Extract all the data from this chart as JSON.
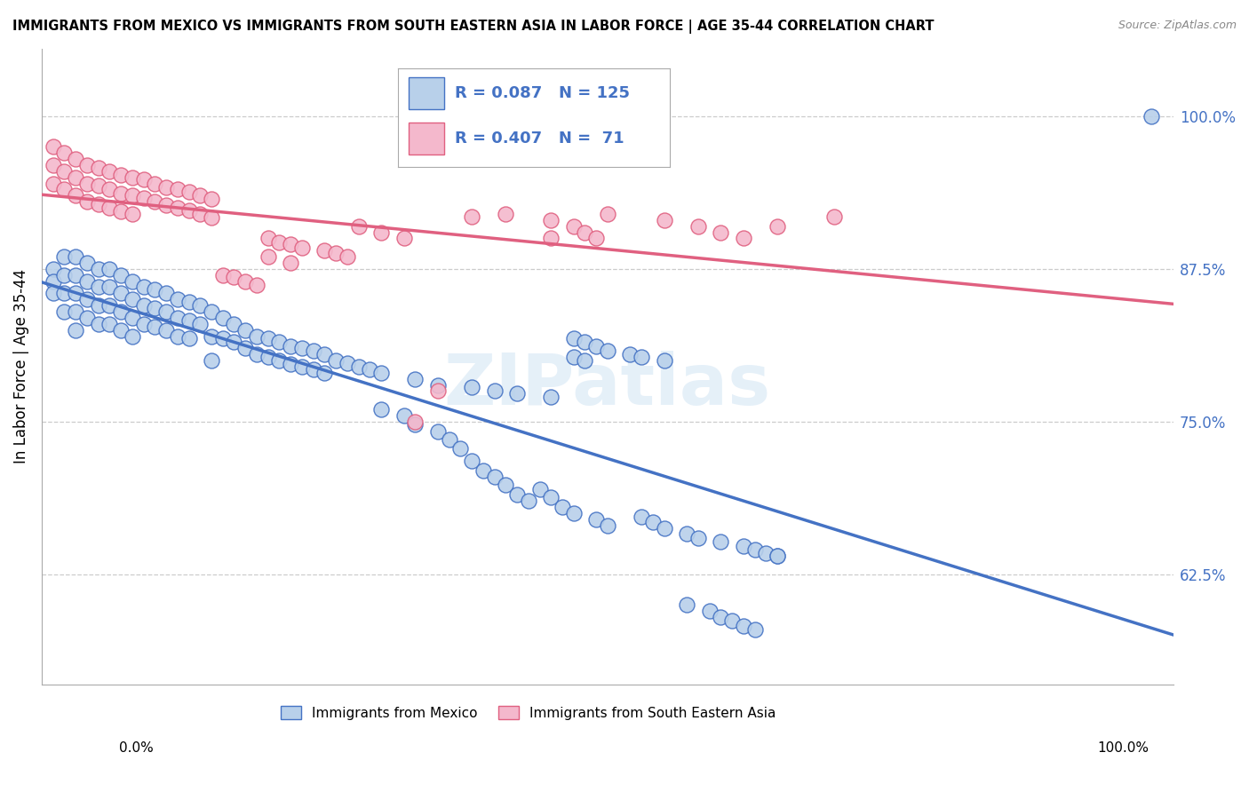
{
  "title": "IMMIGRANTS FROM MEXICO VS IMMIGRANTS FROM SOUTH EASTERN ASIA IN LABOR FORCE | AGE 35-44 CORRELATION CHART",
  "source": "Source: ZipAtlas.com",
  "ylabel": "In Labor Force | Age 35-44",
  "y_ticks": [
    0.625,
    0.75,
    0.875,
    1.0
  ],
  "y_tick_labels": [
    "62.5%",
    "75.0%",
    "87.5%",
    "100.0%"
  ],
  "x_range": [
    0.0,
    1.0
  ],
  "y_range": [
    0.535,
    1.055
  ],
  "legend_blue_R": "0.087",
  "legend_blue_N": "125",
  "legend_pink_R": "0.407",
  "legend_pink_N": "71",
  "blue_face_color": "#b8d0ea",
  "blue_edge_color": "#4472c4",
  "pink_face_color": "#f4b8cc",
  "pink_edge_color": "#e06080",
  "blue_line_color": "#4472c4",
  "pink_line_color": "#e06080",
  "watermark": "ZIPatlas",
  "blue_scatter": [
    [
      0.01,
      0.875
    ],
    [
      0.01,
      0.865
    ],
    [
      0.01,
      0.855
    ],
    [
      0.02,
      0.885
    ],
    [
      0.02,
      0.87
    ],
    [
      0.02,
      0.855
    ],
    [
      0.02,
      0.84
    ],
    [
      0.03,
      0.885
    ],
    [
      0.03,
      0.87
    ],
    [
      0.03,
      0.855
    ],
    [
      0.03,
      0.84
    ],
    [
      0.03,
      0.825
    ],
    [
      0.04,
      0.88
    ],
    [
      0.04,
      0.865
    ],
    [
      0.04,
      0.85
    ],
    [
      0.04,
      0.835
    ],
    [
      0.05,
      0.875
    ],
    [
      0.05,
      0.86
    ],
    [
      0.05,
      0.845
    ],
    [
      0.05,
      0.83
    ],
    [
      0.06,
      0.875
    ],
    [
      0.06,
      0.86
    ],
    [
      0.06,
      0.845
    ],
    [
      0.06,
      0.83
    ],
    [
      0.07,
      0.87
    ],
    [
      0.07,
      0.855
    ],
    [
      0.07,
      0.84
    ],
    [
      0.07,
      0.825
    ],
    [
      0.08,
      0.865
    ],
    [
      0.08,
      0.85
    ],
    [
      0.08,
      0.835
    ],
    [
      0.08,
      0.82
    ],
    [
      0.09,
      0.86
    ],
    [
      0.09,
      0.845
    ],
    [
      0.09,
      0.83
    ],
    [
      0.1,
      0.858
    ],
    [
      0.1,
      0.843
    ],
    [
      0.1,
      0.828
    ],
    [
      0.11,
      0.855
    ],
    [
      0.11,
      0.84
    ],
    [
      0.11,
      0.825
    ],
    [
      0.12,
      0.85
    ],
    [
      0.12,
      0.835
    ],
    [
      0.12,
      0.82
    ],
    [
      0.13,
      0.848
    ],
    [
      0.13,
      0.833
    ],
    [
      0.13,
      0.818
    ],
    [
      0.14,
      0.845
    ],
    [
      0.14,
      0.83
    ],
    [
      0.15,
      0.84
    ],
    [
      0.15,
      0.82
    ],
    [
      0.15,
      0.8
    ],
    [
      0.16,
      0.835
    ],
    [
      0.16,
      0.818
    ],
    [
      0.17,
      0.83
    ],
    [
      0.17,
      0.815
    ],
    [
      0.18,
      0.825
    ],
    [
      0.18,
      0.81
    ],
    [
      0.19,
      0.82
    ],
    [
      0.19,
      0.805
    ],
    [
      0.2,
      0.818
    ],
    [
      0.2,
      0.803
    ],
    [
      0.21,
      0.815
    ],
    [
      0.21,
      0.8
    ],
    [
      0.22,
      0.812
    ],
    [
      0.22,
      0.797
    ],
    [
      0.23,
      0.81
    ],
    [
      0.23,
      0.795
    ],
    [
      0.24,
      0.808
    ],
    [
      0.24,
      0.793
    ],
    [
      0.25,
      0.805
    ],
    [
      0.25,
      0.79
    ],
    [
      0.26,
      0.8
    ],
    [
      0.27,
      0.798
    ],
    [
      0.28,
      0.795
    ],
    [
      0.29,
      0.793
    ],
    [
      0.3,
      0.79
    ],
    [
      0.33,
      0.785
    ],
    [
      0.35,
      0.78
    ],
    [
      0.38,
      0.778
    ],
    [
      0.4,
      0.775
    ],
    [
      0.42,
      0.773
    ],
    [
      0.45,
      0.77
    ],
    [
      0.47,
      0.818
    ],
    [
      0.47,
      0.803
    ],
    [
      0.48,
      0.815
    ],
    [
      0.48,
      0.8
    ],
    [
      0.49,
      0.812
    ],
    [
      0.5,
      0.808
    ],
    [
      0.52,
      0.805
    ],
    [
      0.53,
      0.803
    ],
    [
      0.55,
      0.8
    ],
    [
      0.3,
      0.76
    ],
    [
      0.32,
      0.755
    ],
    [
      0.33,
      0.748
    ],
    [
      0.35,
      0.742
    ],
    [
      0.36,
      0.735
    ],
    [
      0.37,
      0.728
    ],
    [
      0.38,
      0.718
    ],
    [
      0.39,
      0.71
    ],
    [
      0.4,
      0.705
    ],
    [
      0.41,
      0.698
    ],
    [
      0.42,
      0.69
    ],
    [
      0.43,
      0.685
    ],
    [
      0.44,
      0.695
    ],
    [
      0.45,
      0.688
    ],
    [
      0.46,
      0.68
    ],
    [
      0.47,
      0.675
    ],
    [
      0.49,
      0.67
    ],
    [
      0.5,
      0.665
    ],
    [
      0.53,
      0.672
    ],
    [
      0.54,
      0.668
    ],
    [
      0.55,
      0.663
    ],
    [
      0.57,
      0.658
    ],
    [
      0.58,
      0.655
    ],
    [
      0.6,
      0.652
    ],
    [
      0.62,
      0.648
    ],
    [
      0.63,
      0.645
    ],
    [
      0.64,
      0.642
    ],
    [
      0.65,
      0.64
    ],
    [
      0.57,
      0.6
    ],
    [
      0.59,
      0.595
    ],
    [
      0.6,
      0.59
    ],
    [
      0.61,
      0.587
    ],
    [
      0.62,
      0.583
    ],
    [
      0.63,
      0.58
    ],
    [
      0.65,
      0.64
    ],
    [
      0.98,
      1.0
    ]
  ],
  "pink_scatter": [
    [
      0.01,
      0.975
    ],
    [
      0.01,
      0.96
    ],
    [
      0.01,
      0.945
    ],
    [
      0.02,
      0.97
    ],
    [
      0.02,
      0.955
    ],
    [
      0.02,
      0.94
    ],
    [
      0.03,
      0.965
    ],
    [
      0.03,
      0.95
    ],
    [
      0.03,
      0.935
    ],
    [
      0.04,
      0.96
    ],
    [
      0.04,
      0.945
    ],
    [
      0.04,
      0.93
    ],
    [
      0.05,
      0.958
    ],
    [
      0.05,
      0.943
    ],
    [
      0.05,
      0.928
    ],
    [
      0.06,
      0.955
    ],
    [
      0.06,
      0.94
    ],
    [
      0.06,
      0.925
    ],
    [
      0.07,
      0.952
    ],
    [
      0.07,
      0.937
    ],
    [
      0.07,
      0.922
    ],
    [
      0.08,
      0.95
    ],
    [
      0.08,
      0.935
    ],
    [
      0.08,
      0.92
    ],
    [
      0.09,
      0.948
    ],
    [
      0.09,
      0.933
    ],
    [
      0.1,
      0.945
    ],
    [
      0.1,
      0.93
    ],
    [
      0.11,
      0.942
    ],
    [
      0.11,
      0.927
    ],
    [
      0.12,
      0.94
    ],
    [
      0.12,
      0.925
    ],
    [
      0.13,
      0.938
    ],
    [
      0.13,
      0.923
    ],
    [
      0.14,
      0.935
    ],
    [
      0.14,
      0.92
    ],
    [
      0.15,
      0.932
    ],
    [
      0.15,
      0.917
    ],
    [
      0.16,
      0.87
    ],
    [
      0.17,
      0.868
    ],
    [
      0.18,
      0.865
    ],
    [
      0.19,
      0.862
    ],
    [
      0.2,
      0.9
    ],
    [
      0.2,
      0.885
    ],
    [
      0.21,
      0.897
    ],
    [
      0.22,
      0.895
    ],
    [
      0.22,
      0.88
    ],
    [
      0.23,
      0.892
    ],
    [
      0.25,
      0.89
    ],
    [
      0.26,
      0.888
    ],
    [
      0.27,
      0.885
    ],
    [
      0.28,
      0.91
    ],
    [
      0.3,
      0.905
    ],
    [
      0.32,
      0.9
    ],
    [
      0.33,
      0.75
    ],
    [
      0.35,
      0.775
    ],
    [
      0.38,
      0.918
    ],
    [
      0.41,
      0.92
    ],
    [
      0.45,
      0.915
    ],
    [
      0.45,
      0.9
    ],
    [
      0.47,
      0.91
    ],
    [
      0.48,
      0.905
    ],
    [
      0.49,
      0.9
    ],
    [
      0.5,
      0.92
    ],
    [
      0.55,
      0.915
    ],
    [
      0.58,
      0.91
    ],
    [
      0.6,
      0.905
    ],
    [
      0.62,
      0.9
    ],
    [
      0.65,
      0.91
    ],
    [
      0.7,
      0.918
    ]
  ]
}
